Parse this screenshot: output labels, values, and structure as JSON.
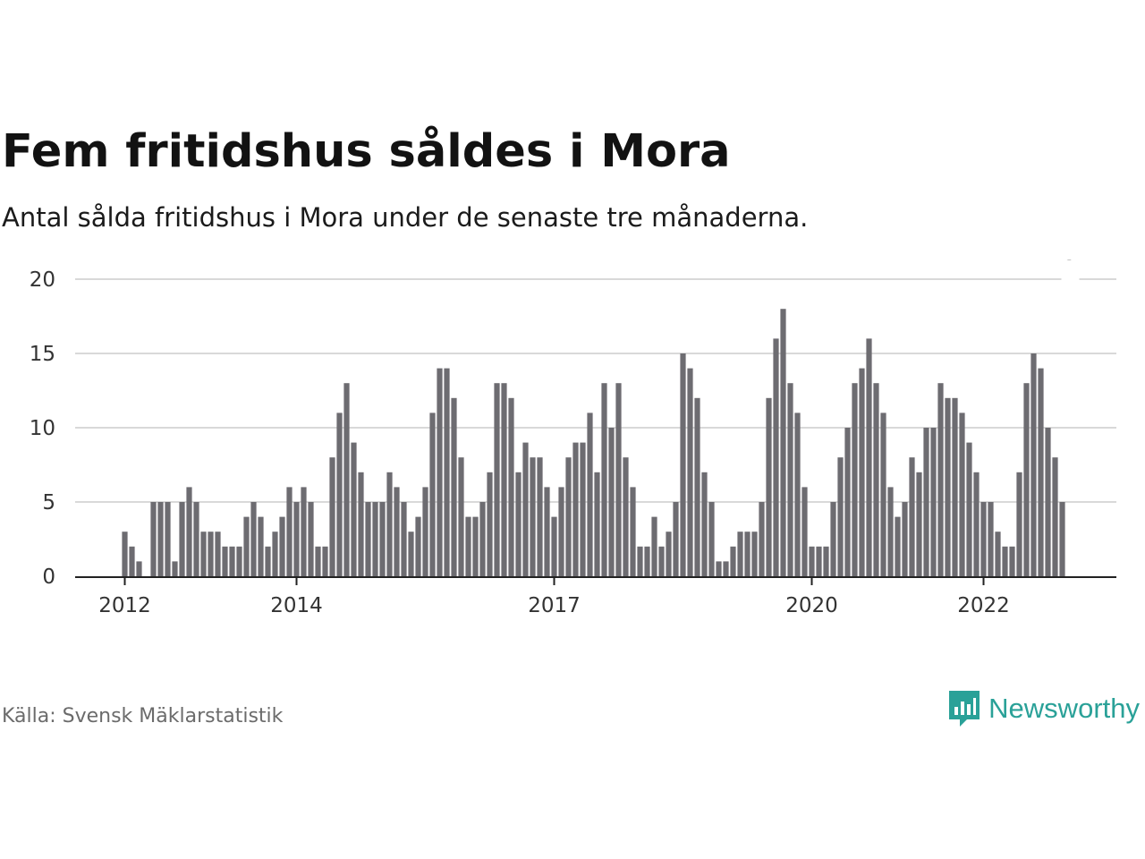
{
  "title": "Fem fritidshus såldes i Mora",
  "subtitle": "Antal sålda fritidshus i Mora under de senaste tre månaderna.",
  "source": "Källa: Svensk Mäklarstatistik",
  "brand": {
    "name": "Newsworthy",
    "logo_icon": "bar-chart-speech-bubble-icon",
    "color": "#2aa198"
  },
  "colors": {
    "bar": "#6d6c71",
    "highlight": "#1a9e91",
    "grid": "#d9d9d9",
    "axis": "#222222"
  },
  "chart_data": {
    "type": "bar",
    "title": "Fem fritidshus såldes i Mora",
    "xlabel": "",
    "ylabel": "",
    "ylim": [
      0,
      20
    ],
    "yticks": [
      0,
      5,
      10,
      15,
      20
    ],
    "xtick_labels": [
      {
        "label": "2012",
        "index": 1
      },
      {
        "label": "2014",
        "index": 25
      },
      {
        "label": "2017",
        "index": 61
      },
      {
        "label": "2020",
        "index": 97
      },
      {
        "label": "2022",
        "index": 121
      }
    ],
    "highlight_index": 133,
    "highlight_label": "5",
    "grid": true,
    "legend": "none",
    "values": [
      null,
      3,
      2,
      1,
      null,
      5,
      5,
      5,
      1,
      5,
      6,
      5,
      3,
      3,
      3,
      2,
      2,
      2,
      4,
      5,
      4,
      2,
      3,
      4,
      6,
      5,
      6,
      5,
      2,
      2,
      8,
      11,
      13,
      9,
      7,
      5,
      5,
      5,
      7,
      6,
      5,
      3,
      4,
      6,
      11,
      14,
      14,
      12,
      8,
      4,
      4,
      5,
      7,
      13,
      13,
      12,
      7,
      9,
      8,
      8,
      6,
      4,
      6,
      8,
      9,
      9,
      11,
      7,
      13,
      10,
      13,
      8,
      6,
      2,
      2,
      4,
      2,
      3,
      5,
      15,
      14,
      12,
      7,
      5,
      1,
      1,
      2,
      3,
      3,
      3,
      5,
      12,
      16,
      18,
      13,
      11,
      6,
      2,
      2,
      2,
      5,
      8,
      10,
      13,
      14,
      16,
      13,
      11,
      6,
      4,
      5,
      8,
      7,
      10,
      10,
      13,
      12,
      12,
      11,
      9,
      7,
      5,
      5,
      3,
      2,
      2,
      7,
      13,
      15,
      14,
      10,
      8,
      5
    ]
  }
}
